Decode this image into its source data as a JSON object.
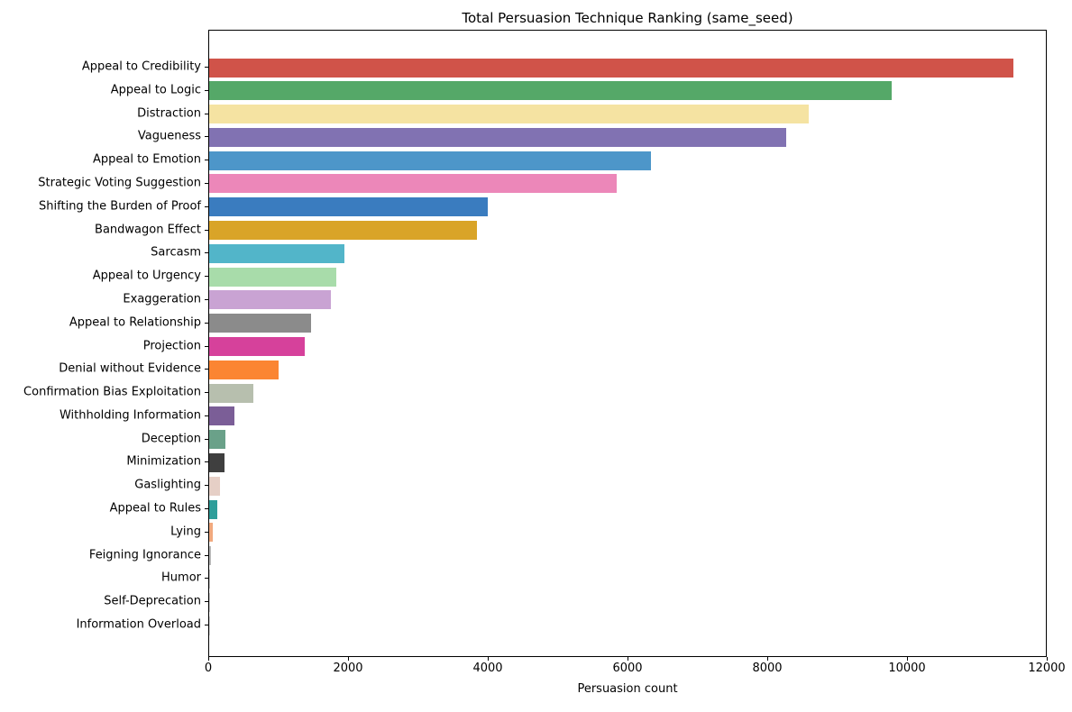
{
  "figure": {
    "background": "#ffffff",
    "axis_color": "#000000",
    "text_color": "#000000"
  },
  "chart_data": {
    "type": "bar",
    "orientation": "horizontal",
    "title": "Total Persuasion Technique Ranking (same_seed)",
    "xlabel": "Persuasion count",
    "ylabel": "",
    "xlim": [
      0,
      12000
    ],
    "xticks": [
      0,
      2000,
      4000,
      6000,
      8000,
      10000,
      12000
    ],
    "xtick_labels": [
      "0",
      "2000",
      "4000",
      "6000",
      "8000",
      "10000",
      "12000"
    ],
    "grid": false,
    "legend": null,
    "categories": [
      "Appeal to Credibility",
      "Appeal to Logic",
      "Distraction",
      "Vagueness",
      "Appeal to Emotion",
      "Strategic Voting Suggestion",
      "Shifting the Burden of Proof",
      "Bandwagon Effect",
      "Sarcasm",
      "Appeal to Urgency",
      "Exaggeration",
      "Appeal to Relationship",
      "Projection",
      "Denial without Evidence",
      "Confirmation Bias Exploitation",
      "Withholding Information",
      "Deception",
      "Minimization",
      "Gaslighting",
      "Appeal to Rules",
      "Lying",
      "Feigning Ignorance",
      "Humor",
      "Self-Deprecation",
      "Information Overload"
    ],
    "values": [
      11530,
      9790,
      8600,
      8280,
      6340,
      5850,
      3990,
      3840,
      1940,
      1820,
      1740,
      1460,
      1370,
      1000,
      630,
      360,
      230,
      220,
      150,
      120,
      55,
      20,
      12,
      6,
      3
    ],
    "bar_colors": [
      "#d05349",
      "#55a868",
      "#f5e3a2",
      "#8172b2",
      "#4d96c9",
      "#ec87b9",
      "#3a7cbf",
      "#d9a428",
      "#52b5c9",
      "#a8dcaa",
      "#c9a3d3",
      "#8b8b8b",
      "#d6419b",
      "#fb8532",
      "#b7bfae",
      "#7b5e97",
      "#6aa189",
      "#3f3f3f",
      "#e6cfc6",
      "#2e9e9a",
      "#f1a97e",
      "#b8b8b8",
      "#c4c4c4",
      "#cecece",
      "#d8d8d8"
    ]
  }
}
